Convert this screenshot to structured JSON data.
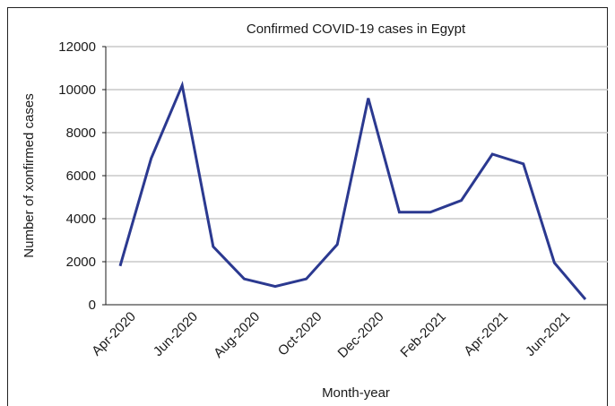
{
  "chart_data": {
    "type": "line",
    "title": "Confirmed COVID-19 cases in Egypt",
    "xlabel": "Month-year",
    "ylabel": "Number of xonfirmed cases",
    "ylim": [
      0,
      12000
    ],
    "yticks": [
      0,
      2000,
      4000,
      6000,
      8000,
      10000,
      12000
    ],
    "ytick_labels": [
      "0",
      "2000",
      "4000",
      "6000",
      "8000",
      "10000",
      "12000"
    ],
    "grid": "horizontal",
    "x": [
      "Apr-2020",
      "May-2020",
      "Jun-2020",
      "Jul-2020",
      "Aug-2020",
      "Sep-2020",
      "Oct-2020",
      "Nov-2020",
      "Dec-2020",
      "Jan-2021",
      "Feb-2021",
      "Mar-2021",
      "Apr-2021",
      "May-2021",
      "Jun-2021",
      "Jul-2021"
    ],
    "xtick_labels": [
      "Apr-2020",
      "Jun-2020",
      "Aug-2020",
      "Oct-2020",
      "Dec-2020",
      "Feb-2021",
      "Apr-2021",
      "Jun-2021"
    ],
    "series": [
      {
        "values": [
          1800,
          6800,
          10200,
          2700,
          1200,
          850,
          1200,
          2800,
          9600,
          4300,
          4300,
          4850,
          7000,
          6550,
          1950,
          250
        ],
        "color": "#2b3990"
      }
    ],
    "colors": {
      "grid": "#c8c8c8",
      "axis": "#1a1a1a",
      "line": "#2b3990"
    }
  }
}
